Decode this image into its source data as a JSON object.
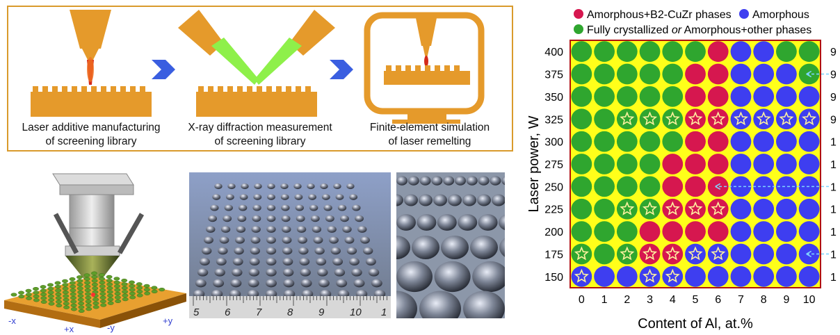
{
  "workflow": {
    "steps": [
      {
        "line1": "Laser additive manufacturing",
        "line2": "of screening library"
      },
      {
        "line1": "X-ray diffraction measurement",
        "line2": "of screening library"
      },
      {
        "line1": "Finite-element simulation",
        "line2": "of laser remelting"
      }
    ],
    "colors": {
      "orange": "#e59a2b",
      "arrow": "#3a5ee0",
      "beam": "#8ef04a"
    }
  },
  "printer": {
    "axis_labels": [
      "-x",
      "+x",
      "-y",
      "+y"
    ]
  },
  "photo": {
    "ruler_numbers": [
      "5",
      "6",
      "7",
      "8",
      "9",
      "10",
      "1"
    ]
  },
  "chart_data": {
    "type": "heatmap",
    "legend": [
      {
        "label": "Amorphous+B2-CuZr phases",
        "color": "#d6174f"
      },
      {
        "label": "Amorphous",
        "color": "#3e3ef0"
      },
      {
        "label": "Fully crystallized ",
        "label_italic": "or",
        "label_tail": " Amorphous+other phases",
        "color": "#2fa62f"
      }
    ],
    "background": "#ffff1a",
    "xlabel": "Content of Al, at.%",
    "ylabel": "Laser power, W",
    "x": [
      0,
      1,
      2,
      3,
      4,
      5,
      6,
      7,
      8,
      9,
      10
    ],
    "y": [
      400,
      375,
      350,
      325,
      300,
      275,
      250,
      225,
      200,
      175,
      150
    ],
    "right_labels": [
      "9",
      "9",
      "9",
      "9",
      "1",
      "1",
      "1",
      "1",
      "1",
      "1",
      "1"
    ],
    "cells": [
      [
        "G",
        "G",
        "G",
        "G",
        "G",
        "G",
        "R",
        "B",
        "B",
        "G",
        "G"
      ],
      [
        "G",
        "G",
        "G",
        "G",
        "G",
        "R",
        "R",
        "B",
        "B",
        "B",
        "G"
      ],
      [
        "G",
        "G",
        "G",
        "G",
        "G",
        "R",
        "R",
        "B",
        "B",
        "B",
        "B"
      ],
      [
        "G",
        "G",
        "G",
        "G",
        "G",
        "R",
        "R",
        "B",
        "B",
        "B",
        "B"
      ],
      [
        "G",
        "G",
        "G",
        "G",
        "G",
        "R",
        "R",
        "B",
        "B",
        "B",
        "B"
      ],
      [
        "G",
        "G",
        "G",
        "G",
        "R",
        "R",
        "R",
        "B",
        "B",
        "B",
        "B"
      ],
      [
        "G",
        "G",
        "G",
        "G",
        "R",
        "R",
        "R",
        "B",
        "B",
        "B",
        "B"
      ],
      [
        "G",
        "G",
        "G",
        "G",
        "R",
        "R",
        "R",
        "B",
        "B",
        "B",
        "B"
      ],
      [
        "G",
        "G",
        "G",
        "R",
        "R",
        "R",
        "R",
        "B",
        "B",
        "B",
        "B"
      ],
      [
        "G",
        "G",
        "G",
        "R",
        "R",
        "B",
        "B",
        "B",
        "B",
        "B",
        "B"
      ],
      [
        "B",
        "B",
        "B",
        "B",
        "B",
        "B",
        "B",
        "B",
        "B",
        "B",
        "B"
      ]
    ],
    "stars": [
      [
        3,
        2
      ],
      [
        3,
        3
      ],
      [
        3,
        4
      ],
      [
        3,
        5
      ],
      [
        3,
        6
      ],
      [
        3,
        7
      ],
      [
        3,
        8
      ],
      [
        3,
        9
      ],
      [
        3,
        10
      ],
      [
        7,
        2
      ],
      [
        7,
        3
      ],
      [
        7,
        4
      ],
      [
        7,
        5
      ],
      [
        7,
        6
      ],
      [
        9,
        0
      ],
      [
        9,
        2
      ],
      [
        9,
        3
      ],
      [
        9,
        4
      ],
      [
        9,
        5
      ],
      [
        9,
        6
      ],
      [
        10,
        0
      ],
      [
        10,
        3
      ],
      [
        10,
        4
      ]
    ],
    "arrows": [
      [
        1,
        10
      ],
      [
        6,
        6
      ],
      [
        9,
        10
      ]
    ]
  }
}
